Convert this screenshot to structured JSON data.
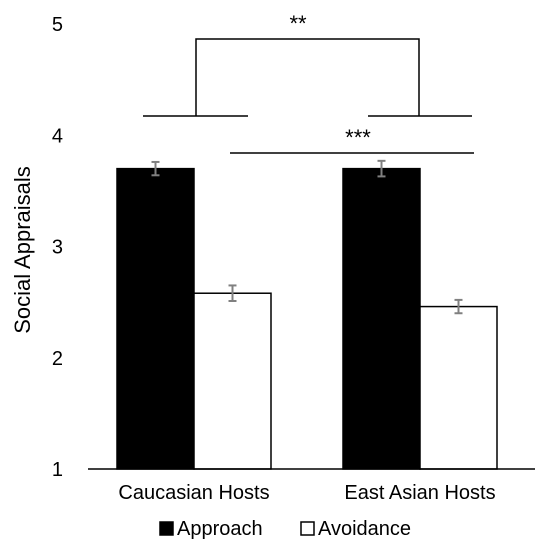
{
  "chart_data": {
    "type": "bar",
    "categories": [
      "Caucasian Hosts",
      "East Asian Hosts"
    ],
    "series": [
      {
        "name": "Approach",
        "values": [
          3.7,
          3.7
        ],
        "errors": [
          0.06,
          0.07
        ],
        "color": "#000000"
      },
      {
        "name": "Avoidance",
        "values": [
          2.58,
          2.46
        ],
        "errors": [
          0.07,
          0.06
        ],
        "color": "#ffffff"
      }
    ],
    "title": "",
    "xlabel": "",
    "ylabel": "Social Appraisals",
    "ylim": [
      1,
      5
    ],
    "yticks": [
      "1",
      "2",
      "3",
      "4",
      "5"
    ],
    "grid": false,
    "legend_position": "bottom",
    "annotations": [
      {
        "label": "**",
        "comparison": "Caucasian Hosts vs East Asian Hosts (Approach minus Avoidance)"
      },
      {
        "label": "***",
        "comparison": "Approach Caucasian Hosts vs Avoidance East Asian Hosts"
      }
    ],
    "colors": {
      "axis": "#000000",
      "error_bar": "#808080"
    }
  }
}
